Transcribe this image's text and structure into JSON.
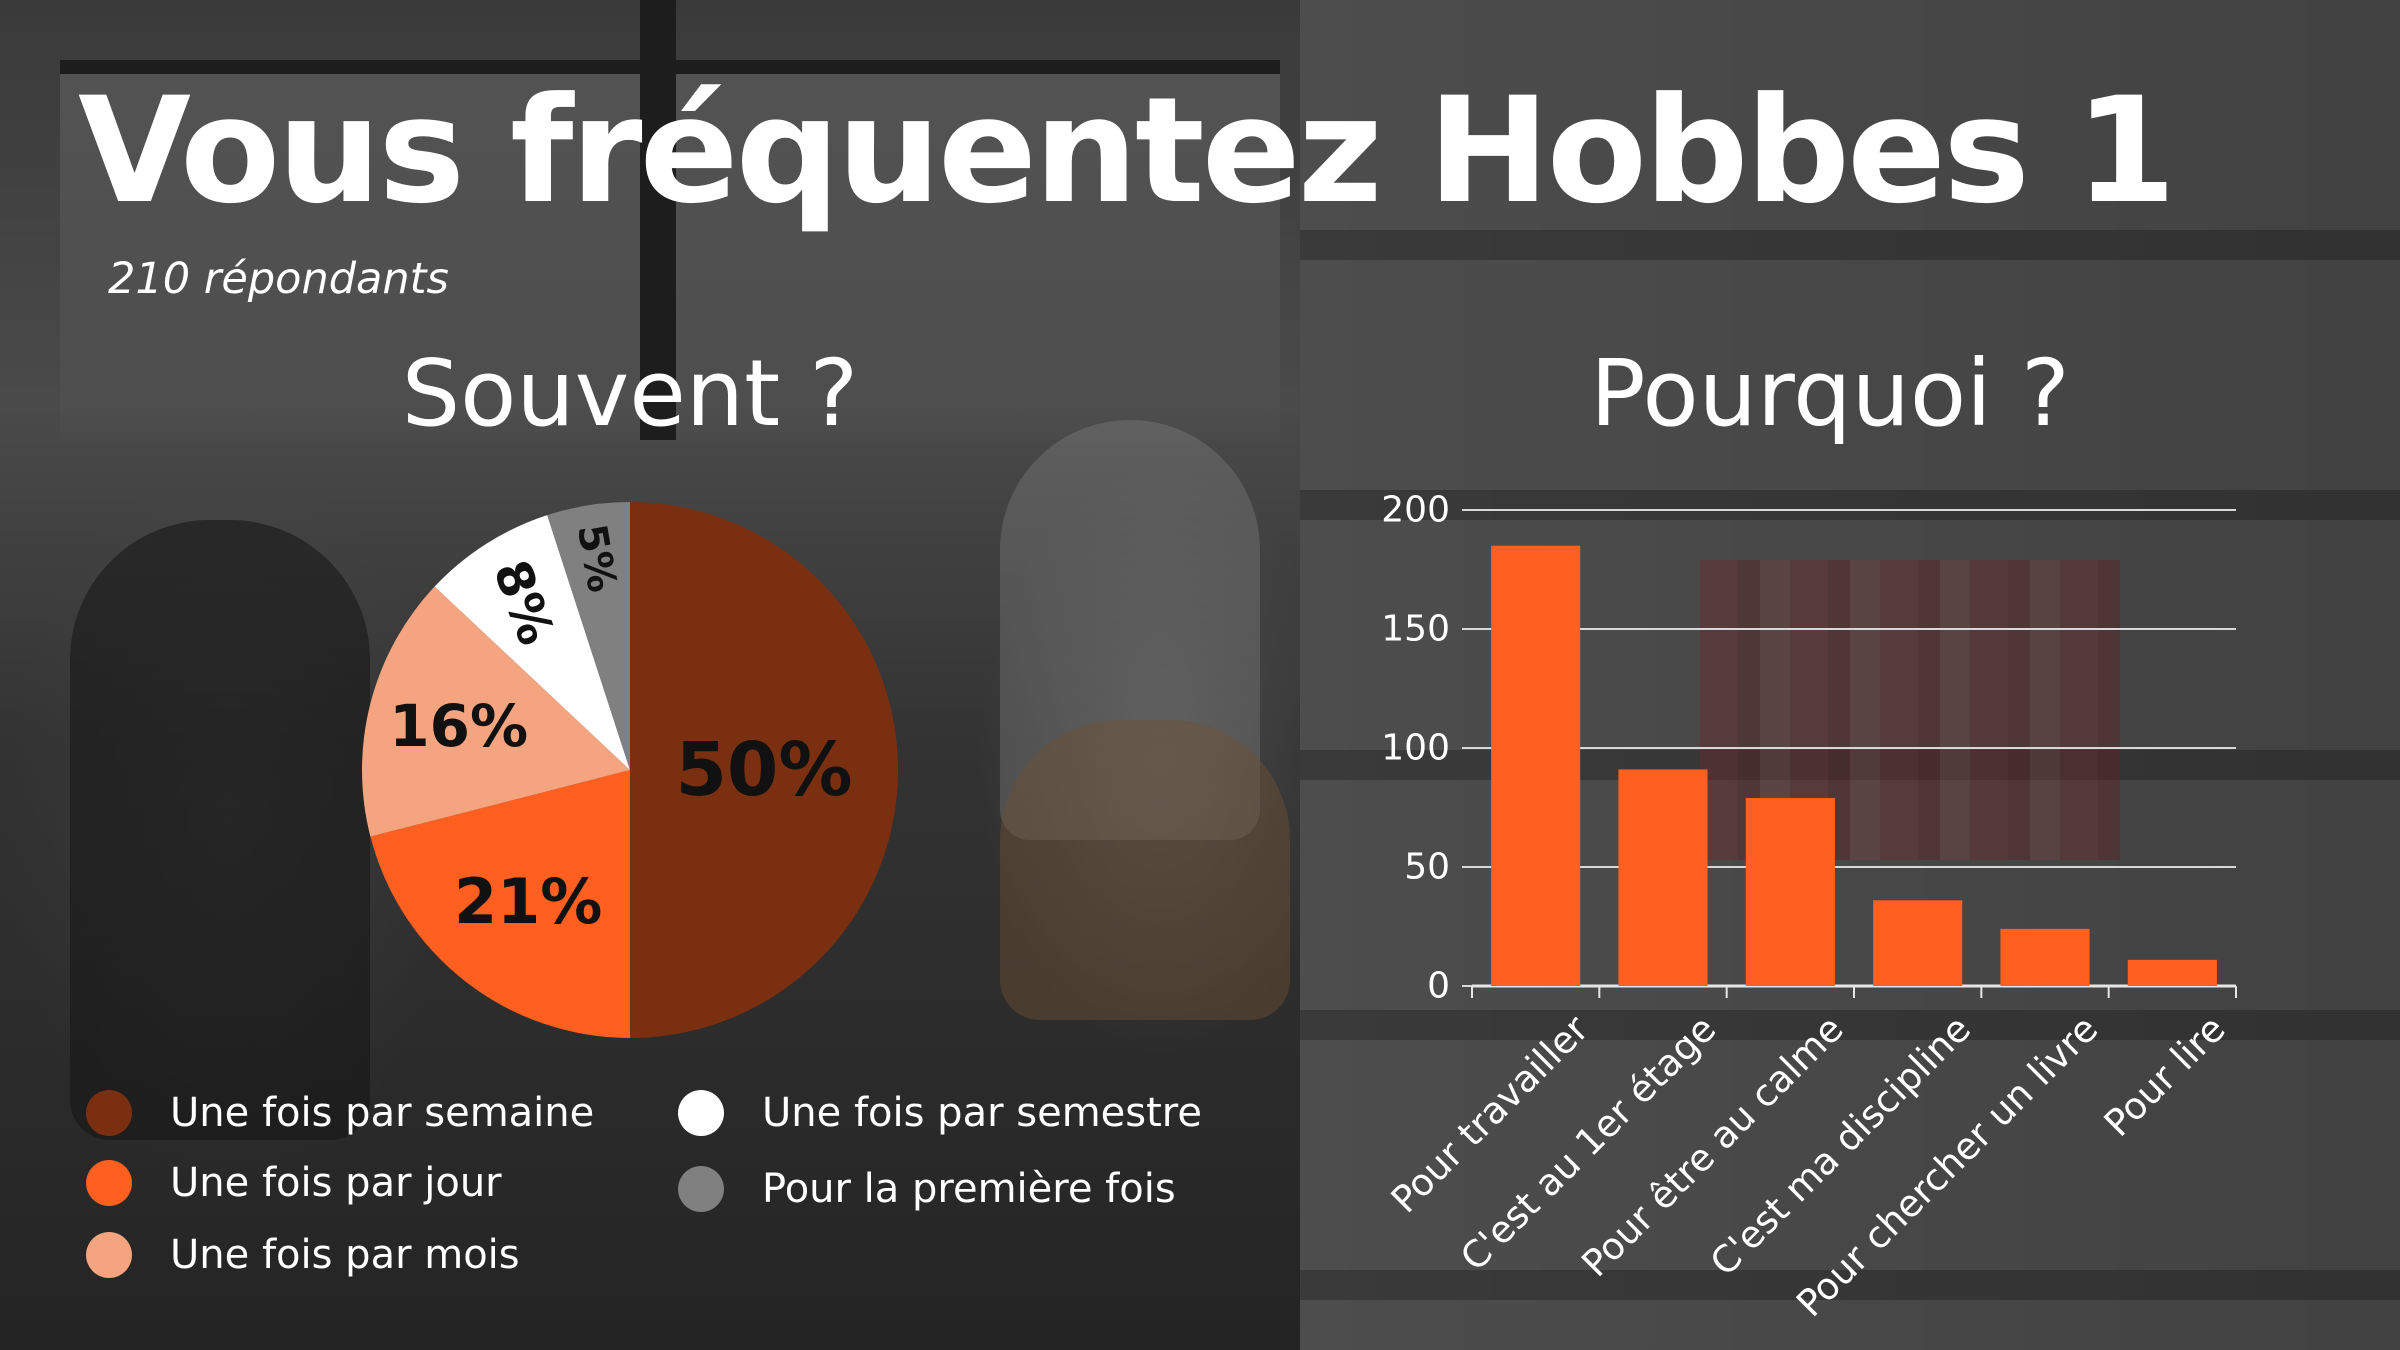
{
  "title": "Vous fréquentez Hobbes 1",
  "subtitle": "210 répondants",
  "colors": {
    "dark_brown": "#7a3010",
    "orange": "#ff5f1f",
    "light_orange": "#f4a57f",
    "white": "#ffffff",
    "gray": "#808080",
    "bar": "#ff5f1f"
  },
  "chart_data": [
    {
      "type": "pie",
      "title": "Souvent ?",
      "slices": [
        {
          "label": "Une fois par semaine",
          "value": 50,
          "display": "50%",
          "color": "#7a3010"
        },
        {
          "label": "Une fois par jour",
          "value": 21,
          "display": "21%",
          "color": "#ff5f1f"
        },
        {
          "label": "Une fois par mois",
          "value": 16,
          "display": "16%",
          "color": "#f4a57f"
        },
        {
          "label": "Une fois par semestre",
          "value": 8,
          "display": "8%",
          "color": "#ffffff"
        },
        {
          "label": "Pour la première fois",
          "value": 5,
          "display": "5%",
          "color": "#808080"
        }
      ],
      "legend": [
        "Une fois par semaine",
        "Une fois par jour",
        "Une fois par mois",
        "Une fois par semestre",
        "Pour la première fois"
      ],
      "legend_placement": "bottom"
    },
    {
      "type": "bar",
      "title": "Pourquoi ?",
      "categories": [
        "Pour travailler",
        "C'est au 1er étage",
        "Pour être au calme",
        "C'est ma discipline",
        "Pour chercher un livre",
        "Pour lire"
      ],
      "values": [
        185,
        91,
        79,
        36,
        24,
        11
      ],
      "ylim": [
        0,
        200
      ],
      "yticks": [
        0,
        50,
        100,
        150,
        200
      ],
      "ytick_labels": [
        "0",
        "50",
        "100",
        "150",
        "200"
      ],
      "grid": true,
      "color": "#ff5f1f"
    }
  ]
}
